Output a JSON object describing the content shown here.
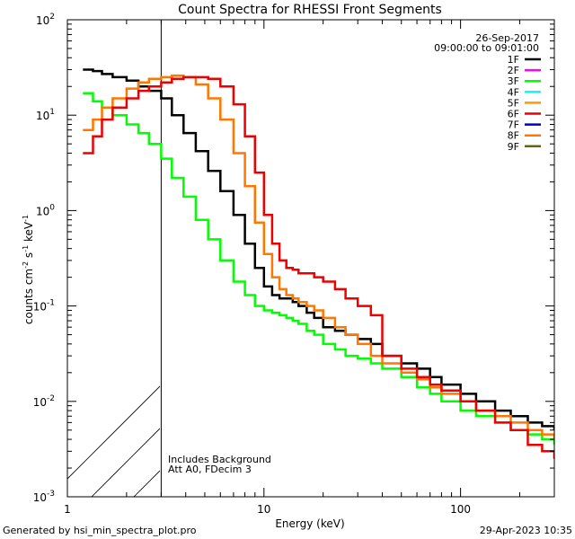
{
  "chart_data": {
    "type": "line",
    "title": "Count Spectra for RHESSI Front Segments",
    "xlabel": "Energy (keV)",
    "ylabel": "counts cm",
    "ylabel_sup1": "-2",
    "ylabel_mid": " s",
    "ylabel_sup2": "-1",
    "ylabel_end": " keV",
    "ylabel_sup3": "-1",
    "xscale": "log",
    "yscale": "log",
    "xlim": [
      1,
      300
    ],
    "ylim": [
      0.001,
      100
    ],
    "x_ticks": [
      {
        "value": 1,
        "label": "1"
      },
      {
        "value": 10,
        "label": "10"
      },
      {
        "value": 100,
        "label": "100"
      }
    ],
    "y_ticks": [
      {
        "value": 0.001,
        "base": "10",
        "exp": "-3"
      },
      {
        "value": 0.01,
        "base": "10",
        "exp": "-2"
      },
      {
        "value": 0.1,
        "base": "10",
        "exp": "-1"
      },
      {
        "value": 1,
        "base": "10",
        "exp": "0"
      },
      {
        "value": 10,
        "base": "10",
        "exp": "1"
      },
      {
        "value": 100,
        "base": "10",
        "exp": "2"
      }
    ],
    "date": "26-Sep-2017",
    "time_range": "09:00:00 to 09:01:00",
    "hatched_region": {
      "x_from": 1,
      "x_to": 3
    },
    "annotation_lines": [
      "Includes Background",
      "Att A0, FDecim 3"
    ],
    "legend_position": "top-right",
    "legend": [
      {
        "label": "1F",
        "color": "#000000"
      },
      {
        "label": "2F",
        "color": "#ff00ff"
      },
      {
        "label": "3F",
        "color": "#00ff00"
      },
      {
        "label": "4F",
        "color": "#00ffff"
      },
      {
        "label": "5F",
        "color": "#ff9900"
      },
      {
        "label": "6F",
        "color": "#ee0000"
      },
      {
        "label": "7F",
        "color": "#0000cc"
      },
      {
        "label": "8F",
        "color": "#ff7700"
      },
      {
        "label": "9F",
        "color": "#666600"
      }
    ],
    "series": [
      {
        "name": "1F",
        "color": "#000000",
        "x": [
          1.2,
          1.35,
          1.5,
          1.7,
          2.0,
          2.3,
          2.6,
          3.0,
          3.4,
          3.9,
          4.5,
          5.2,
          6.0,
          7.0,
          8.0,
          9.0,
          10.0,
          11.0,
          12.0,
          13.0,
          14.0,
          15.0,
          16.5,
          18.0,
          20.0,
          23.0,
          26.0,
          30.0,
          35.0,
          40.0,
          50.0,
          60.0,
          70.0,
          80.0,
          100.0,
          120.0,
          150.0,
          180.0,
          220.0,
          260.0,
          300.0
        ],
        "y": [
          30,
          29,
          27,
          25,
          23,
          20,
          18,
          15,
          10,
          6.5,
          4.2,
          2.6,
          1.6,
          0.9,
          0.45,
          0.25,
          0.16,
          0.13,
          0.12,
          0.12,
          0.11,
          0.1,
          0.085,
          0.075,
          0.06,
          0.055,
          0.05,
          0.045,
          0.04,
          0.03,
          0.025,
          0.022,
          0.018,
          0.015,
          0.012,
          0.01,
          0.008,
          0.007,
          0.006,
          0.0055,
          0.005
        ]
      },
      {
        "name": "3F",
        "color": "#00ff00",
        "x": [
          1.2,
          1.35,
          1.5,
          1.7,
          2.0,
          2.3,
          2.6,
          3.0,
          3.4,
          3.9,
          4.5,
          5.2,
          6.0,
          7.0,
          8.0,
          9.0,
          10.0,
          11.0,
          12.0,
          13.0,
          14.0,
          15.0,
          16.5,
          18.0,
          20.0,
          23.0,
          26.0,
          30.0,
          35.0,
          40.0,
          50.0,
          60.0,
          70.0,
          80.0,
          100.0,
          120.0,
          150.0,
          180.0,
          220.0,
          260.0,
          300.0
        ],
        "y": [
          17,
          14,
          12,
          10,
          8,
          6.5,
          5,
          3.5,
          2.2,
          1.4,
          0.8,
          0.5,
          0.3,
          0.18,
          0.13,
          0.1,
          0.09,
          0.085,
          0.08,
          0.075,
          0.07,
          0.065,
          0.055,
          0.05,
          0.04,
          0.035,
          0.03,
          0.028,
          0.025,
          0.022,
          0.018,
          0.014,
          0.012,
          0.01,
          0.008,
          0.007,
          0.006,
          0.005,
          0.0045,
          0.004,
          0.0035
        ]
      },
      {
        "name": "8F",
        "color": "#ff7700",
        "x": [
          1.2,
          1.35,
          1.5,
          1.7,
          2.0,
          2.3,
          2.6,
          3.0,
          3.4,
          3.9,
          4.5,
          5.2,
          6.0,
          7.0,
          8.0,
          9.0,
          10.0,
          11.0,
          12.0,
          13.0,
          14.0,
          15.0,
          16.5,
          18.0,
          20.0,
          23.0,
          26.0,
          30.0,
          35.0,
          40.0,
          50.0,
          60.0,
          70.0,
          80.0,
          100.0,
          120.0,
          150.0,
          180.0,
          220.0,
          260.0,
          300.0
        ],
        "y": [
          7,
          9,
          12,
          15,
          19,
          22,
          24,
          25,
          26,
          25,
          21,
          15,
          9,
          4,
          1.8,
          0.75,
          0.35,
          0.2,
          0.15,
          0.13,
          0.12,
          0.11,
          0.1,
          0.09,
          0.075,
          0.06,
          0.05,
          0.04,
          0.03,
          0.025,
          0.02,
          0.017,
          0.014,
          0.012,
          0.01,
          0.008,
          0.007,
          0.006,
          0.005,
          0.0045,
          0.004
        ]
      },
      {
        "name": "6F",
        "color": "#ee0000",
        "x": [
          1.2,
          1.35,
          1.5,
          1.7,
          2.0,
          2.3,
          2.6,
          3.0,
          3.4,
          3.9,
          4.5,
          5.2,
          6.0,
          7.0,
          8.0,
          9.0,
          10.0,
          11.0,
          12.0,
          13.0,
          14.0,
          15.0,
          16.5,
          18.0,
          20.0,
          23.0,
          26.0,
          30.0,
          35.0,
          40.0,
          50.0,
          60.0,
          70.0,
          80.0,
          100.0,
          120.0,
          150.0,
          180.0,
          220.0,
          260.0,
          300.0
        ],
        "y": [
          4,
          6,
          9,
          12,
          15,
          18,
          20,
          22,
          24,
          25,
          25,
          24,
          20,
          13,
          6,
          2.5,
          0.9,
          0.45,
          0.3,
          0.25,
          0.24,
          0.22,
          0.22,
          0.2,
          0.18,
          0.15,
          0.12,
          0.1,
          0.08,
          0.03,
          0.022,
          0.018,
          0.015,
          0.013,
          0.01,
          0.008,
          0.006,
          0.005,
          0.0035,
          0.003,
          0.0025
        ]
      }
    ]
  },
  "footer": {
    "left": "Generated by hsi_min_spectra_plot.pro",
    "right": "29-Apr-2023 10:35"
  }
}
